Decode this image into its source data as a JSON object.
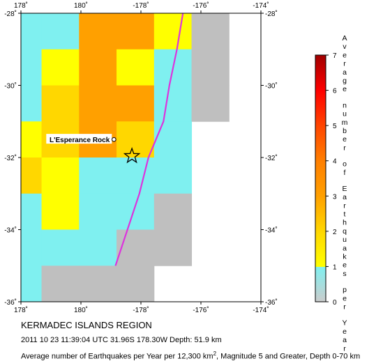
{
  "map": {
    "title": "KERMADEC ISLANDS REGION",
    "event_line": "2011 10 23 11:39:04 UTC 31.96S 178.30W Depth: 51.9 km",
    "footnote": {
      "before": "Average number of Earthquakes per Year per 12,300 km",
      "superscript": "2",
      "after": ", Magnitude 5 and Greater, Depth 0-70 km"
    },
    "landmark_label": "L'Esperance Rock",
    "lon_tick_labels": [
      "178˚",
      "180˚",
      "-178˚",
      "-176˚",
      "-174˚"
    ],
    "lat_tick_labels": [
      "-28˚",
      "-30˚",
      "-32˚",
      "-34˚",
      "-36˚"
    ],
    "extent": {
      "lon_min": 178,
      "lon_max": 186,
      "lat_min": -36,
      "lat_max": -28
    },
    "epicenter": {
      "lat": -31.96,
      "lon": 181.7,
      "symbol": "star-icon"
    },
    "landmark": {
      "lat": -31.5,
      "lon": 181.1,
      "symbol": "circle-icon"
    },
    "trench_line": {
      "color": "#dd33dd",
      "points": [
        [
          -28.0,
          183.4
        ],
        [
          -29.0,
          183.2
        ],
        [
          -30.0,
          182.95
        ],
        [
          -31.0,
          182.75
        ],
        [
          -32.0,
          182.25
        ],
        [
          -33.0,
          181.95
        ],
        [
          -34.0,
          181.55
        ],
        [
          -35.0,
          181.15
        ]
      ]
    },
    "grid": {
      "rows": 8,
      "cols": 7,
      "values": [
        [
          0.7,
          0.5,
          2.0,
          2.0,
          1.2,
          0.3,
          null
        ],
        [
          0.6,
          1.2,
          2.0,
          1.4,
          0.8,
          0.3,
          null
        ],
        [
          0.4,
          1.5,
          2.4,
          2.4,
          0.7,
          0.3,
          null
        ],
        [
          1.2,
          1.6,
          2.0,
          1.6,
          0.4,
          null,
          null
        ],
        [
          1.5,
          1.4,
          0.7,
          0.4,
          0.5,
          null,
          null
        ],
        [
          0.6,
          1.3,
          0.7,
          0.4,
          0.2,
          null,
          null
        ],
        [
          0.6,
          0.5,
          0.4,
          0.2,
          0.1,
          null,
          null
        ],
        [
          0.6,
          0.3,
          0.2,
          0.2,
          null,
          null,
          null
        ]
      ]
    },
    "grid_colors": [
      "#bfbfbf",
      "#7ff0f0",
      "#ffff00",
      "#ffd700",
      "#ffa000",
      "#ff7f00",
      "#ff4500",
      "#ff0000",
      "#b40000"
    ]
  },
  "legend": {
    "tick_labels": [
      "0",
      "1",
      "2",
      "3",
      "4",
      "5",
      "6",
      "7"
    ],
    "color_stops": [
      {
        "from": 0,
        "to": 1,
        "color": "#cccccc",
        "to_color": "#7ff0f0"
      },
      {
        "from": 1,
        "to": 2,
        "color": "#ffff00",
        "to_color": "#ffd700"
      },
      {
        "from": 2,
        "to": 3,
        "color": "#ffd700",
        "to_color": "#ffa000"
      },
      {
        "from": 3,
        "to": 4,
        "color": "#ffa000",
        "to_color": "#ff7f00"
      },
      {
        "from": 4,
        "to": 5,
        "color": "#ff7f00",
        "to_color": "#ff4500"
      },
      {
        "from": 5,
        "to": 6,
        "color": "#ff4500",
        "to_color": "#ff0000"
      },
      {
        "from": 6,
        "to": 7,
        "color": "#ff0000",
        "to_color": "#a00000"
      }
    ],
    "label_lines": [
      "Average",
      "number",
      "of",
      "Earthquakes",
      "per",
      "Year"
    ]
  }
}
